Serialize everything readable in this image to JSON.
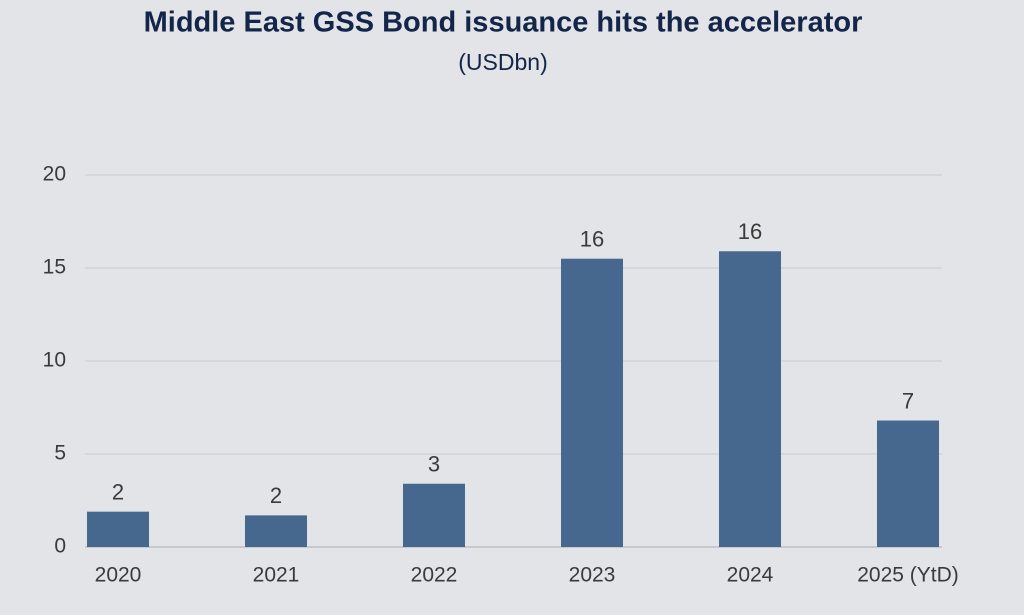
{
  "chart_data": {
    "type": "bar",
    "title": "Middle East GSS Bond issuance hits the accelerator",
    "subtitle": "(USDbn)",
    "categories": [
      "2020",
      "2021",
      "2022",
      "2023",
      "2024",
      "2025 (YtD)"
    ],
    "values": [
      1.9,
      1.7,
      3.4,
      15.5,
      15.9,
      6.8
    ],
    "value_labels": [
      "2",
      "2",
      "3",
      "16",
      "16",
      "7"
    ],
    "color": "#46688f",
    "ylim": [
      0,
      20
    ],
    "yticks": [
      0,
      5,
      10,
      15,
      20
    ],
    "grid": true
  }
}
